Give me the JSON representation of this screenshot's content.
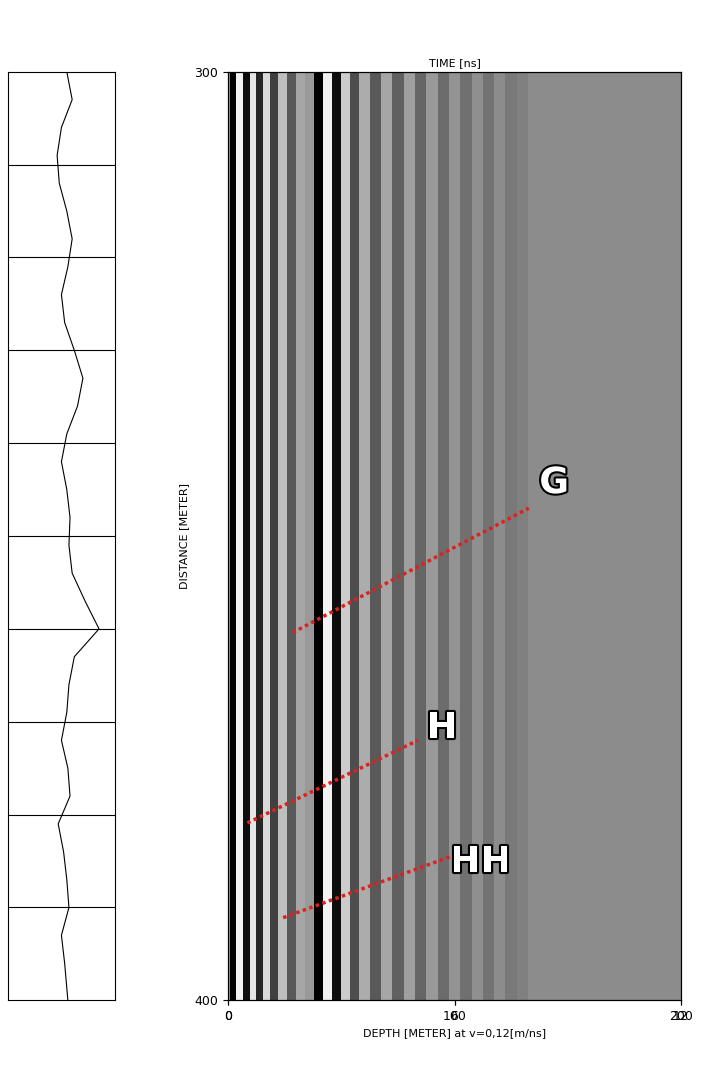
{
  "chart_data": {
    "type": "radargram",
    "xlabel": "TIME [ns]",
    "xlim": [
      0,
      200
    ],
    "xticks": [
      0,
      100,
      200
    ],
    "x2label": "DEPTH [METER] at v=0,12[m/ns]",
    "x2lim": [
      0,
      12
    ],
    "x2ticks": [
      0,
      6,
      12
    ],
    "ylabel": "DISTANCE [METER]",
    "ylim": [
      400,
      300
    ],
    "yticks": [
      300,
      400
    ],
    "bands": {
      "time": [
        0,
        2,
        5,
        8,
        11,
        14,
        17,
        20,
        24,
        28,
        32,
        36,
        40,
        44,
        48,
        52,
        56,
        60,
        65,
        70,
        75,
        80,
        85,
        90,
        95,
        100,
        105,
        110,
        115,
        120,
        125,
        130
      ],
      "amplitude": [
        0.2,
        -1,
        0.9,
        -0.9,
        0.8,
        -0.7,
        0.7,
        -0.5,
        0.5,
        -0.3,
        0.3,
        0.2,
        -1,
        0.9,
        -0.9,
        0.6,
        -0.4,
        0.35,
        -0.3,
        0.3,
        -0.25,
        0.25,
        -0.2,
        0.2,
        -0.15,
        0.15,
        -0.12,
        0.12,
        -0.1,
        0.1,
        -0.05,
        0
      ]
    },
    "trace": {
      "distance": [
        300,
        303,
        306,
        309,
        312,
        315,
        318,
        321,
        324,
        327,
        330,
        333,
        336,
        339,
        342,
        345,
        348,
        351,
        354,
        357,
        360,
        363,
        366,
        369,
        372,
        375,
        378,
        381,
        384,
        387,
        390,
        393,
        396,
        400
      ],
      "values": [
        0.55,
        0.6,
        0.5,
        0.46,
        0.48,
        0.55,
        0.6,
        0.56,
        0.5,
        0.53,
        0.62,
        0.7,
        0.65,
        0.55,
        0.5,
        0.55,
        0.58,
        0.57,
        0.6,
        0.72,
        0.85,
        0.62,
        0.57,
        0.55,
        0.5,
        0.56,
        0.58,
        0.47,
        0.52,
        0.55,
        0.57,
        0.5,
        0.53,
        0.56
      ],
      "xlim": [
        0,
        1
      ],
      "divisions": [
        310,
        320,
        330,
        340,
        350,
        360,
        370,
        380,
        390
      ]
    },
    "annotations": [
      {
        "text": "G",
        "x": 144,
        "y": 344.3,
        "line": {
          "x": [
            28.5,
            132.8
          ],
          "y": [
            360.4,
            347.0
          ]
        }
      },
      {
        "text": "H",
        "x": 94.5,
        "y": 370.7,
        "line": {
          "x": [
            8.5,
            83.8
          ],
          "y": [
            380.9,
            372.0
          ]
        }
      },
      {
        "text": "HH",
        "x": 111.5,
        "y": 385.1,
        "line": {
          "x": [
            24.3,
            99.6
          ],
          "y": [
            391.1,
            384.4
          ]
        }
      }
    ],
    "color": "#e0201c"
  }
}
